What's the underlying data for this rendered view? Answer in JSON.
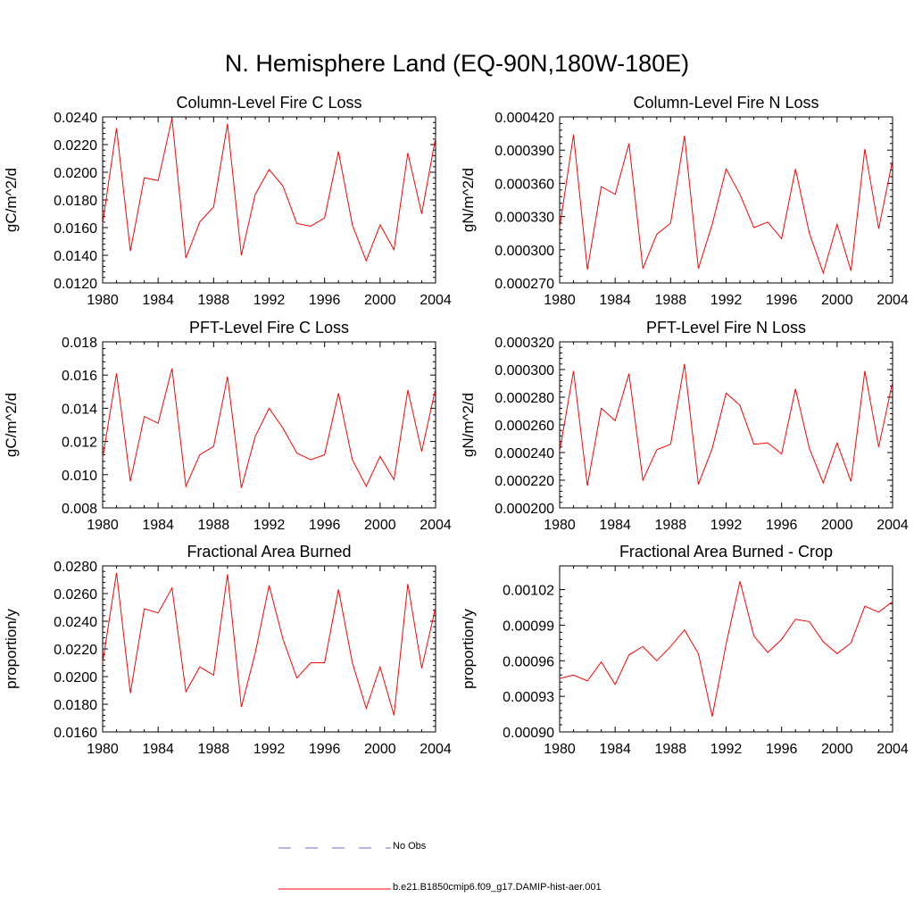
{
  "title": "N. Hemisphere Land (EQ-90N,180W-180E)",
  "series_color": "#ff0000",
  "obs_color": "#6a6ad0",
  "legend": {
    "obs_label": "No Obs",
    "model_label": "b.e21.B1850cmip6.f09_g17.DAMIP-hist-aer.001"
  },
  "chart_data": [
    {
      "type": "line",
      "title": "Column-Level Fire C Loss",
      "ylabel": "gC/m^2/d",
      "xlim": [
        1980,
        2004
      ],
      "ylim": [
        0.012,
        0.024
      ],
      "xticks": [
        "1980",
        "1984",
        "1988",
        "1992",
        "1996",
        "2000",
        "2004"
      ],
      "yticks": [
        "0.0120",
        "0.0140",
        "0.0160",
        "0.0180",
        "0.0200",
        "0.0220",
        "0.0240"
      ],
      "x": [
        1980,
        1981,
        1982,
        1983,
        1984,
        1985,
        1986,
        1987,
        1988,
        1989,
        1990,
        1991,
        1992,
        1993,
        1994,
        1995,
        1996,
        1997,
        1998,
        1999,
        2000,
        2001,
        2002,
        2003,
        2004
      ],
      "values": [
        0.0163,
        0.0232,
        0.0143,
        0.0196,
        0.0194,
        0.0239,
        0.0138,
        0.0164,
        0.0175,
        0.0235,
        0.014,
        0.0184,
        0.0202,
        0.019,
        0.0163,
        0.0161,
        0.0167,
        0.0215,
        0.0162,
        0.0136,
        0.0162,
        0.0144,
        0.0214,
        0.017,
        0.0225
      ]
    },
    {
      "type": "line",
      "title": "Column-Level Fire N Loss",
      "ylabel": "gN/m^2/d",
      "xlim": [
        1980,
        2004
      ],
      "ylim": [
        0.00027,
        0.00042
      ],
      "xticks": [
        "1980",
        "1984",
        "1988",
        "1992",
        "1996",
        "2000",
        "2004"
      ],
      "yticks": [
        "0.000270",
        "0.000300",
        "0.000330",
        "0.000360",
        "0.000390",
        "0.000420"
      ],
      "x": [
        1980,
        1981,
        1982,
        1983,
        1984,
        1985,
        1986,
        1987,
        1988,
        1989,
        1990,
        1991,
        1992,
        1993,
        1994,
        1995,
        1996,
        1997,
        1998,
        1999,
        2000,
        2001,
        2002,
        2003,
        2004
      ],
      "values": [
        0.00032,
        0.000404,
        0.000282,
        0.000357,
        0.00035,
        0.000396,
        0.000283,
        0.000314,
        0.000324,
        0.000403,
        0.000283,
        0.000323,
        0.000373,
        0.00035,
        0.00032,
        0.000325,
        0.00031,
        0.000373,
        0.000315,
        0.000279,
        0.000323,
        0.000281,
        0.000391,
        0.000319,
        0.000381
      ]
    },
    {
      "type": "line",
      "title": "PFT-Level Fire C Loss",
      "ylabel": "gC/m^2/d",
      "xlim": [
        1980,
        2004
      ],
      "ylim": [
        0.008,
        0.018
      ],
      "xticks": [
        "1980",
        "1984",
        "1988",
        "1992",
        "1996",
        "2000",
        "2004"
      ],
      "yticks": [
        "0.008",
        "0.010",
        "0.012",
        "0.014",
        "0.016",
        "0.018"
      ],
      "x": [
        1980,
        1981,
        1982,
        1983,
        1984,
        1985,
        1986,
        1987,
        1988,
        1989,
        1990,
        1991,
        1992,
        1993,
        1994,
        1995,
        1996,
        1997,
        1998,
        1999,
        2000,
        2001,
        2002,
        2003,
        2004
      ],
      "values": [
        0.011,
        0.0161,
        0.0096,
        0.0135,
        0.0131,
        0.0164,
        0.0093,
        0.0112,
        0.0117,
        0.0159,
        0.0092,
        0.0123,
        0.014,
        0.0128,
        0.0113,
        0.0109,
        0.0112,
        0.0149,
        0.0109,
        0.0093,
        0.0111,
        0.0097,
        0.0151,
        0.0114,
        0.0152
      ]
    },
    {
      "type": "line",
      "title": "PFT-Level Fire N Loss",
      "ylabel": "gN/m^2/d",
      "xlim": [
        1980,
        2004
      ],
      "ylim": [
        0.0002,
        0.00032
      ],
      "xticks": [
        "1980",
        "1984",
        "1988",
        "1992",
        "1996",
        "2000",
        "2004"
      ],
      "yticks": [
        "0.000200",
        "0.000220",
        "0.000240",
        "0.000260",
        "0.000280",
        "0.000300",
        "0.000320"
      ],
      "x": [
        1980,
        1981,
        1982,
        1983,
        1984,
        1985,
        1986,
        1987,
        1988,
        1989,
        1990,
        1991,
        1992,
        1993,
        1994,
        1995,
        1996,
        1997,
        1998,
        1999,
        2000,
        2001,
        2002,
        2003,
        2004
      ],
      "values": [
        0.000241,
        0.000299,
        0.000216,
        0.000272,
        0.000263,
        0.000297,
        0.00022,
        0.000242,
        0.000246,
        0.000304,
        0.000217,
        0.000243,
        0.000283,
        0.000274,
        0.000246,
        0.000247,
        0.000239,
        0.000286,
        0.000243,
        0.000218,
        0.000247,
        0.000219,
        0.000299,
        0.000244,
        0.000291
      ]
    },
    {
      "type": "line",
      "title": "Fractional Area Burned",
      "ylabel": "proportion/y",
      "xlim": [
        1980,
        2004
      ],
      "ylim": [
        0.016,
        0.028
      ],
      "xticks": [
        "1980",
        "1984",
        "1988",
        "1992",
        "1996",
        "2000",
        "2004"
      ],
      "yticks": [
        "0.0160",
        "0.0180",
        "0.0200",
        "0.0220",
        "0.0240",
        "0.0260",
        "0.0280"
      ],
      "x": [
        1980,
        1981,
        1982,
        1983,
        1984,
        1985,
        1986,
        1987,
        1988,
        1989,
        1990,
        1991,
        1992,
        1993,
        1994,
        1995,
        1996,
        1997,
        1998,
        1999,
        2000,
        2001,
        2002,
        2003,
        2004
      ],
      "values": [
        0.021,
        0.0275,
        0.0188,
        0.0249,
        0.0246,
        0.0264,
        0.0189,
        0.0207,
        0.0201,
        0.0274,
        0.0178,
        0.0217,
        0.0266,
        0.0227,
        0.0199,
        0.021,
        0.021,
        0.0263,
        0.021,
        0.0177,
        0.0207,
        0.0172,
        0.0267,
        0.0206,
        0.025
      ]
    },
    {
      "type": "line",
      "title": "Fractional Area Burned - Crop",
      "ylabel": "proportion/y",
      "xlim": [
        1980,
        2004
      ],
      "ylim": [
        0.0009,
        0.00104
      ],
      "xticks": [
        "1980",
        "1984",
        "1988",
        "1992",
        "1996",
        "2000",
        "2004"
      ],
      "yticks": [
        "0.00090",
        "0.00093",
        "0.00096",
        "0.00099",
        "0.00102"
      ],
      "x": [
        1980,
        1981,
        1982,
        1983,
        1984,
        1985,
        1986,
        1987,
        1988,
        1989,
        1990,
        1991,
        1992,
        1993,
        1994,
        1995,
        1996,
        1997,
        1998,
        1999,
        2000,
        2001,
        2002,
        2003,
        2004
      ],
      "values": [
        0.000945,
        0.000948,
        0.000943,
        0.000959,
        0.00094,
        0.000965,
        0.000972,
        0.00096,
        0.000972,
        0.000986,
        0.000966,
        0.000913,
        0.000974,
        0.001027,
        0.000981,
        0.000967,
        0.000978,
        0.000995,
        0.000993,
        0.000976,
        0.000966,
        0.000975,
        0.001006,
        0.001001,
        0.00101
      ]
    }
  ]
}
